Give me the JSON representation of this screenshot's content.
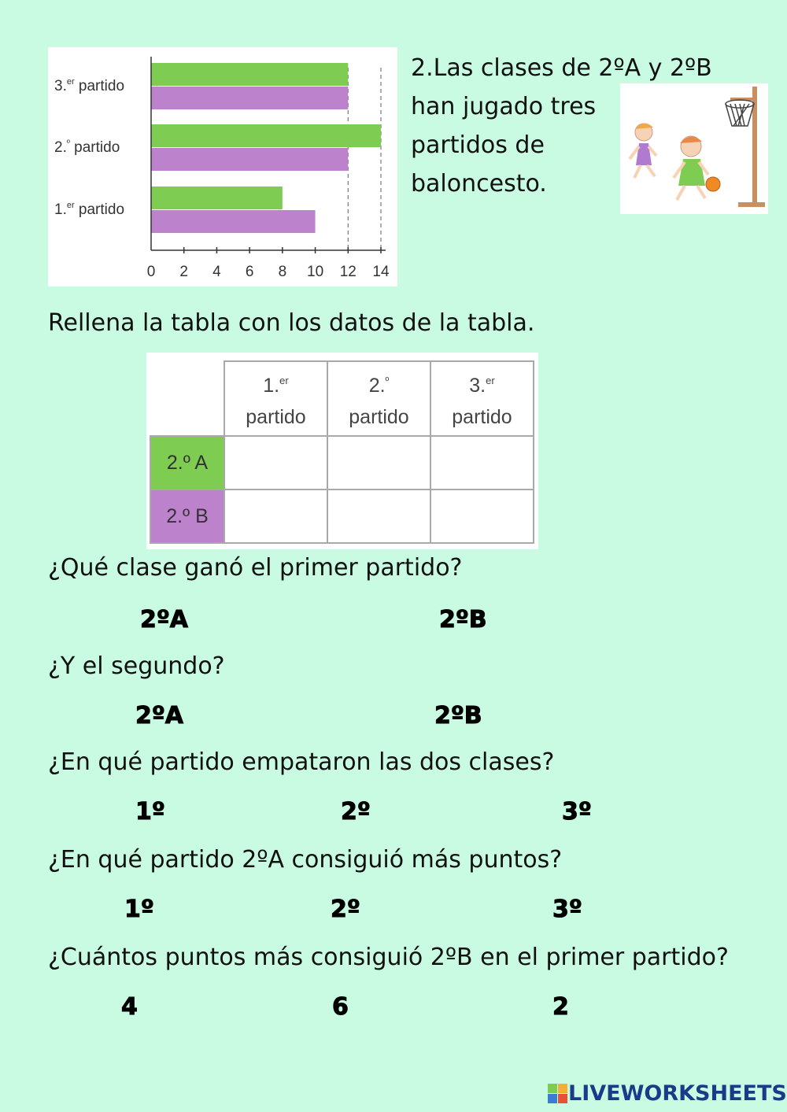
{
  "intro": {
    "lines": [
      "2.Las clases de 2ºA y 2ºB",
      "han jugado tres",
      "partidos de",
      "baloncesto."
    ]
  },
  "chart_data": {
    "type": "bar",
    "orientation": "horizontal",
    "categories": [
      "3.er partido",
      "2.º partido",
      "1.er partido"
    ],
    "category_labels": [
      {
        "main": "3.",
        "sup": "er",
        "rest": " partido"
      },
      {
        "main": "2.",
        "sup": "º",
        "rest": " partido"
      },
      {
        "main": "1.",
        "sup": "er",
        "rest": " partido"
      }
    ],
    "series": [
      {
        "color": "#7ecd52",
        "values": [
          12,
          14,
          8
        ]
      },
      {
        "color": "#bc82cc",
        "values": [
          12,
          12,
          10
        ]
      }
    ],
    "xticks": [
      "0",
      "2",
      "4",
      "6",
      "8",
      "10",
      "12",
      "14"
    ],
    "xlim": [
      0,
      14
    ],
    "reference_lines": [
      12,
      14
    ],
    "grid": false
  },
  "instruction": "Rellena la tabla con los datos de la tabla.",
  "table": {
    "columns": [
      {
        "main": "1.",
        "sup": "er",
        "second": "partido"
      },
      {
        "main": "2.",
        "sup": "º",
        "second": "partido"
      },
      {
        "main": "3.",
        "sup": "er",
        "second": "partido"
      }
    ],
    "rows": [
      {
        "label": "2.º A",
        "color": "#7ecd52",
        "cells": [
          "",
          "",
          ""
        ]
      },
      {
        "label": "2.º B",
        "color": "#bc82cc",
        "cells": [
          "",
          "",
          ""
        ]
      }
    ]
  },
  "questions": [
    {
      "text": "¿Qué clase ganó el primer partido?",
      "options": [
        "2ºA",
        "2ºB"
      ]
    },
    {
      "text": "¿Y el segundo?",
      "options": [
        "2ºA",
        "2ºB"
      ]
    },
    {
      "text": "¿En qué partido empataron las dos clases?",
      "options": [
        "1º",
        "2º",
        "3º"
      ]
    },
    {
      "text": "¿En qué partido 2ºA consiguió más puntos?",
      "options": [
        "1º",
        "2º",
        "3º"
      ]
    },
    {
      "text": "¿Cuántos puntos más consiguió 2ºB en el primer partido?",
      "options": [
        "4",
        "6",
        "2"
      ]
    }
  ],
  "brand": {
    "text": "LIVEWORKSHEETS"
  }
}
